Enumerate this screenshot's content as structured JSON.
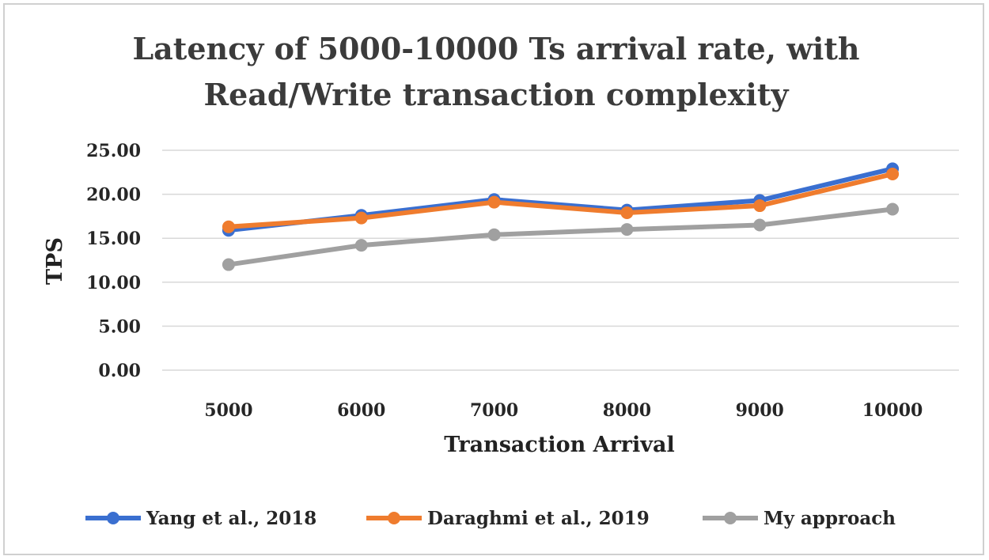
{
  "chart_data": {
    "type": "line",
    "title_line1": "Latency of 5000-10000  Ts arrival rate, with",
    "title_line2": "Read/Write transaction complexity",
    "xlabel": "Transaction Arrival",
    "ylabel": "TPS",
    "categories": [
      "5000",
      "6000",
      "7000",
      "8000",
      "9000",
      "10000"
    ],
    "y_ticks": [
      "0.00",
      "5.00",
      "10.00",
      "15.00",
      "20.00",
      "25.00"
    ],
    "ylim": [
      0,
      25
    ],
    "grid": true,
    "legend_position": "bottom",
    "series": [
      {
        "name": "Yang et al., 2018",
        "color": "#3a6fd0",
        "values": [
          15.9,
          17.6,
          19.4,
          18.2,
          19.3,
          22.9
        ]
      },
      {
        "name": "Daraghmi et al., 2019",
        "color": "#ef7c2e",
        "values": [
          16.3,
          17.3,
          19.1,
          17.9,
          18.7,
          22.3
        ]
      },
      {
        "name": "My approach",
        "color": "#a0a0a0",
        "values": [
          12.0,
          14.2,
          15.4,
          16.0,
          16.5,
          18.3
        ]
      }
    ]
  }
}
